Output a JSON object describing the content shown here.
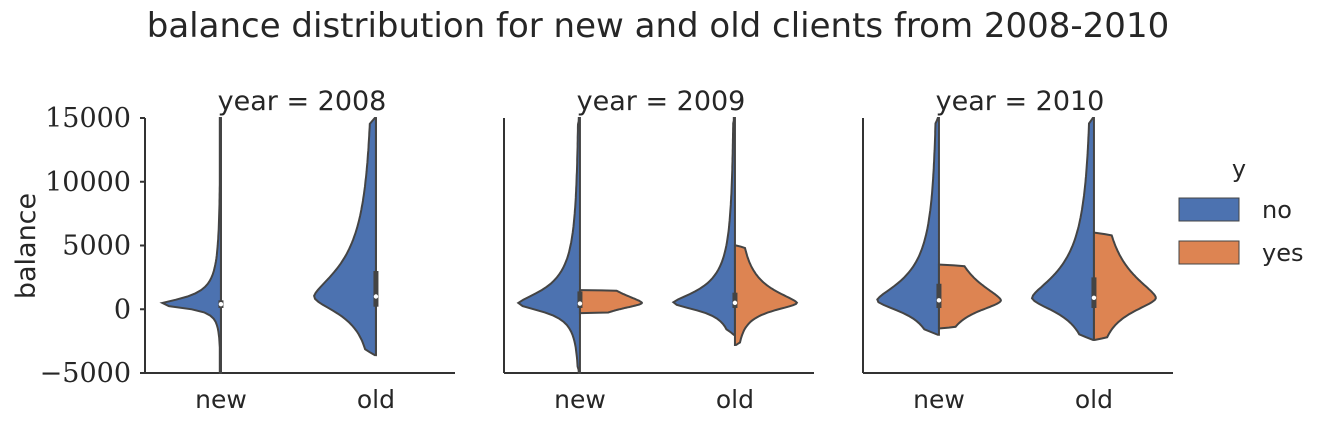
{
  "chart_data": {
    "type": "violin",
    "title": "balance distribution for new and old clients from 2008-2010",
    "ylabel": "balance",
    "xlabel": "",
    "facet_label_prefix": "year = ",
    "categories": [
      "new",
      "old"
    ],
    "ylim": [
      -5000,
      15000
    ],
    "yticks": [
      15000,
      10000,
      5000,
      0,
      -5000
    ],
    "ytick_labels": [
      "15000",
      "10000",
      "5000",
      "0",
      "−5000"
    ],
    "grid": false,
    "legend": {
      "title": "y",
      "position": "right",
      "entries": [
        {
          "label": "no",
          "color": "#4c72b0"
        },
        {
          "label": "yes",
          "color": "#dd8452"
        }
      ]
    },
    "facets": [
      {
        "year": "2008",
        "groups": [
          {
            "category": "new",
            "no": {
              "min": -5000,
              "max": 15000,
              "q1": 100,
              "median": 400,
              "q3": 700,
              "whisker_low": -500,
              "whisker_high": 1300
            },
            "yes": null
          },
          {
            "category": "old",
            "no": {
              "min": -3600,
              "max": 15000,
              "q1": 200,
              "median": 1000,
              "q3": 3000,
              "whisker_low": -1500,
              "whisker_high": 7000
            },
            "yes": null
          }
        ]
      },
      {
        "year": "2009",
        "groups": [
          {
            "category": "new",
            "no": {
              "min": -5000,
              "max": 15000,
              "q1": 100,
              "median": 450,
              "q3": 1400,
              "whisker_low": -900,
              "whisker_high": 2500
            },
            "yes": {
              "min": -300,
              "max": 1500,
              "q1": 100,
              "median": 500,
              "q3": 1200
            }
          },
          {
            "category": "old",
            "no": {
              "min": -2000,
              "max": 15000,
              "q1": 100,
              "median": 500,
              "q3": 1300,
              "whisker_low": -900,
              "whisker_high": 3000
            },
            "yes": {
              "min": -2800,
              "max": 5000,
              "q1": 100,
              "median": 500,
              "q3": 1400
            }
          }
        ]
      },
      {
        "year": "2010",
        "groups": [
          {
            "category": "new",
            "no": {
              "min": -2000,
              "max": 15000,
              "q1": 100,
              "median": 700,
              "q3": 2000
            },
            "yes": {
              "min": -1500,
              "max": 3500,
              "q1": 100,
              "median": 700,
              "q3": 2000
            }
          },
          {
            "category": "old",
            "no": {
              "min": -2400,
              "max": 15000,
              "q1": 100,
              "median": 900,
              "q3": 2500
            },
            "yes": {
              "min": -2400,
              "max": 6000,
              "q1": 100,
              "median": 900,
              "q3": 2500
            }
          }
        ]
      }
    ]
  }
}
